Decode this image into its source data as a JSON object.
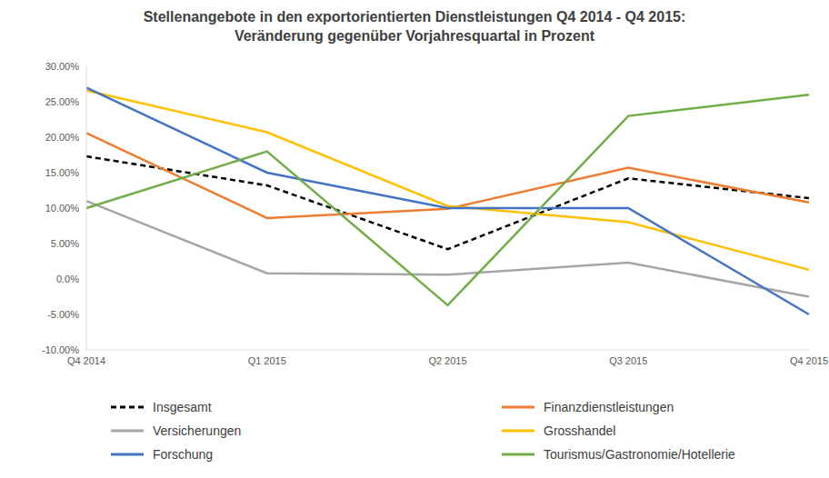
{
  "chart_data": {
    "type": "line",
    "title": "Stellenangebote in den exportorientierten Dienstleistungen Q4 2014 - Q4 2015:\nVeränderung gegenüber Vorjahresquartal in Prozent",
    "categories": [
      "Q4 2014",
      "Q1 2015",
      "Q2 2015",
      "Q3 2015",
      "Q4 2015"
    ],
    "series": [
      {
        "name": "Insgesamt",
        "color": "#000000",
        "line_style": "dashed",
        "marker": "none",
        "values": [
          17.3,
          13.2,
          4.2,
          14.2,
          11.4
        ]
      },
      {
        "name": "Finanzdienstleistungen",
        "color": "#ED7D31",
        "line_style": "solid",
        "marker": "none",
        "values": [
          20.6,
          8.6,
          9.9,
          15.7,
          10.8
        ]
      },
      {
        "name": "Versicherungen",
        "color": "#A5A5A5",
        "line_style": "solid",
        "marker": "none",
        "values": [
          11.0,
          0.8,
          0.6,
          2.3,
          -2.5
        ]
      },
      {
        "name": "Grosshandel",
        "color": "#FFC000",
        "line_style": "solid",
        "marker": "none",
        "values": [
          26.6,
          20.7,
          10.3,
          8.0,
          1.3
        ]
      },
      {
        "name": "Forschung",
        "color": "#4472C4",
        "line_style": "solid",
        "marker": "none",
        "values": [
          27.0,
          15.0,
          10.0,
          10.0,
          -5.0
        ]
      },
      {
        "name": "Tourismus/Gastronomie/Hotellerie",
        "color": "#70AD47",
        "line_style": "solid",
        "marker": "none",
        "values": [
          10.0,
          18.0,
          -3.7,
          23.0,
          26.0
        ]
      }
    ],
    "ylim": [
      -10,
      30
    ],
    "yticks": [
      {
        "value": -10,
        "label": "-10.00%"
      },
      {
        "value": -5,
        "label": "-5.00%"
      },
      {
        "value": 0,
        "label": "0.0%"
      },
      {
        "value": 5,
        "label": "5.00%"
      },
      {
        "value": 10,
        "label": "10.00%"
      },
      {
        "value": 15,
        "label": "15.00%"
      },
      {
        "value": 20,
        "label": "20.00%"
      },
      {
        "value": 25,
        "label": "25.00%"
      },
      {
        "value": 30,
        "label": "30.00%"
      }
    ],
    "grid": false,
    "legend": "bottom"
  }
}
